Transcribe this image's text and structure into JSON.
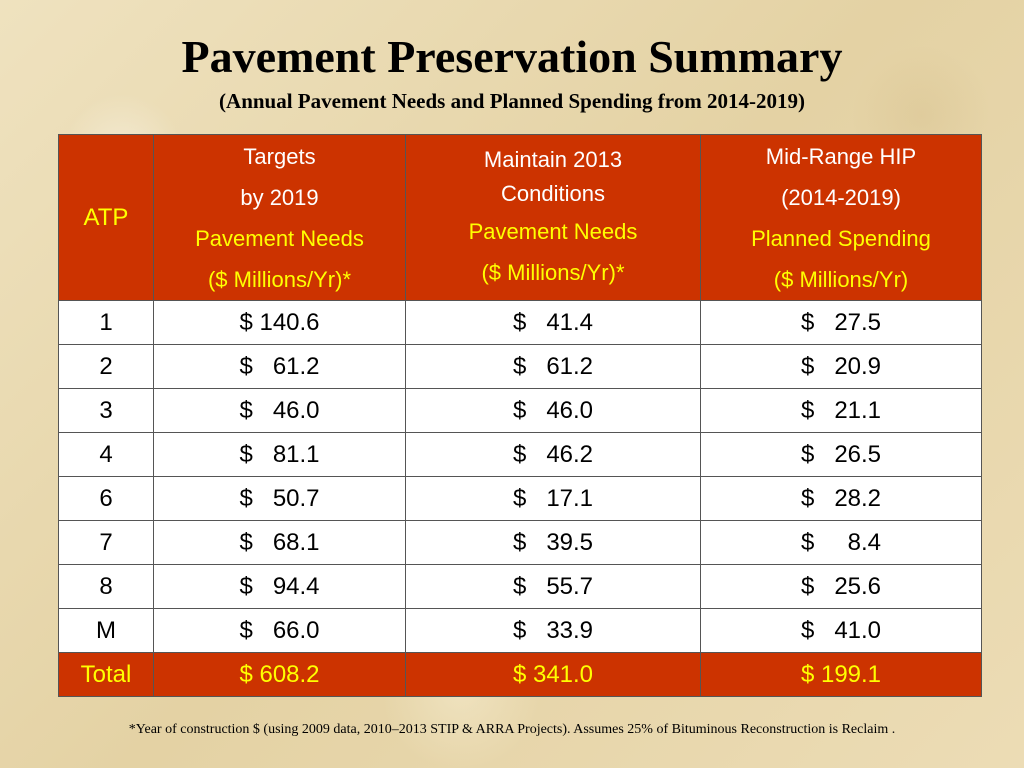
{
  "title": "Pavement Preservation Summary",
  "subtitle": "(Annual Pavement Needs and Planned Spending from 2014-2019)",
  "table": {
    "header": {
      "atp": "ATP",
      "targets": [
        "Targets",
        "by 2019",
        "Pavement Needs",
        "($ Millions/Yr)*"
      ],
      "maintain": [
        "Maintain 2013 Conditions",
        "Pavement Needs",
        "($ Millions/Yr)*"
      ],
      "midrange": [
        "Mid-Range HIP",
        "(2014-2019)",
        "Planned Spending",
        "($ Millions/Yr)"
      ]
    },
    "rows": [
      {
        "atp": "1",
        "targets": "$ 140.6",
        "maintain": "$   41.4",
        "midrange": "$   27.5"
      },
      {
        "atp": "2",
        "targets": "$   61.2",
        "maintain": "$   61.2",
        "midrange": "$   20.9"
      },
      {
        "atp": "3",
        "targets": "$   46.0",
        "maintain": "$   46.0",
        "midrange": "$   21.1"
      },
      {
        "atp": "4",
        "targets": "$   81.1",
        "maintain": "$   46.2",
        "midrange": "$   26.5"
      },
      {
        "atp": "6",
        "targets": "$   50.7",
        "maintain": "$   17.1",
        "midrange": "$   28.2"
      },
      {
        "atp": "7",
        "targets": "$   68.1",
        "maintain": "$   39.5",
        "midrange": "$     8.4"
      },
      {
        "atp": "8",
        "targets": "$   94.4",
        "maintain": "$   55.7",
        "midrange": "$   25.6"
      },
      {
        "atp": "M",
        "targets": "$   66.0",
        "maintain": "$   33.9",
        "midrange": "$   41.0"
      }
    ],
    "total": {
      "atp": "Total",
      "targets": "$ 608.2",
      "maintain": "$ 341.0",
      "midrange": "$ 199.1"
    }
  },
  "footnote": "*Year of construction $ (using 2009 data, 2010–2013 STIP & ARRA Projects).  Assumes 25% of  Bituminous Reconstruction is Reclaim ."
}
